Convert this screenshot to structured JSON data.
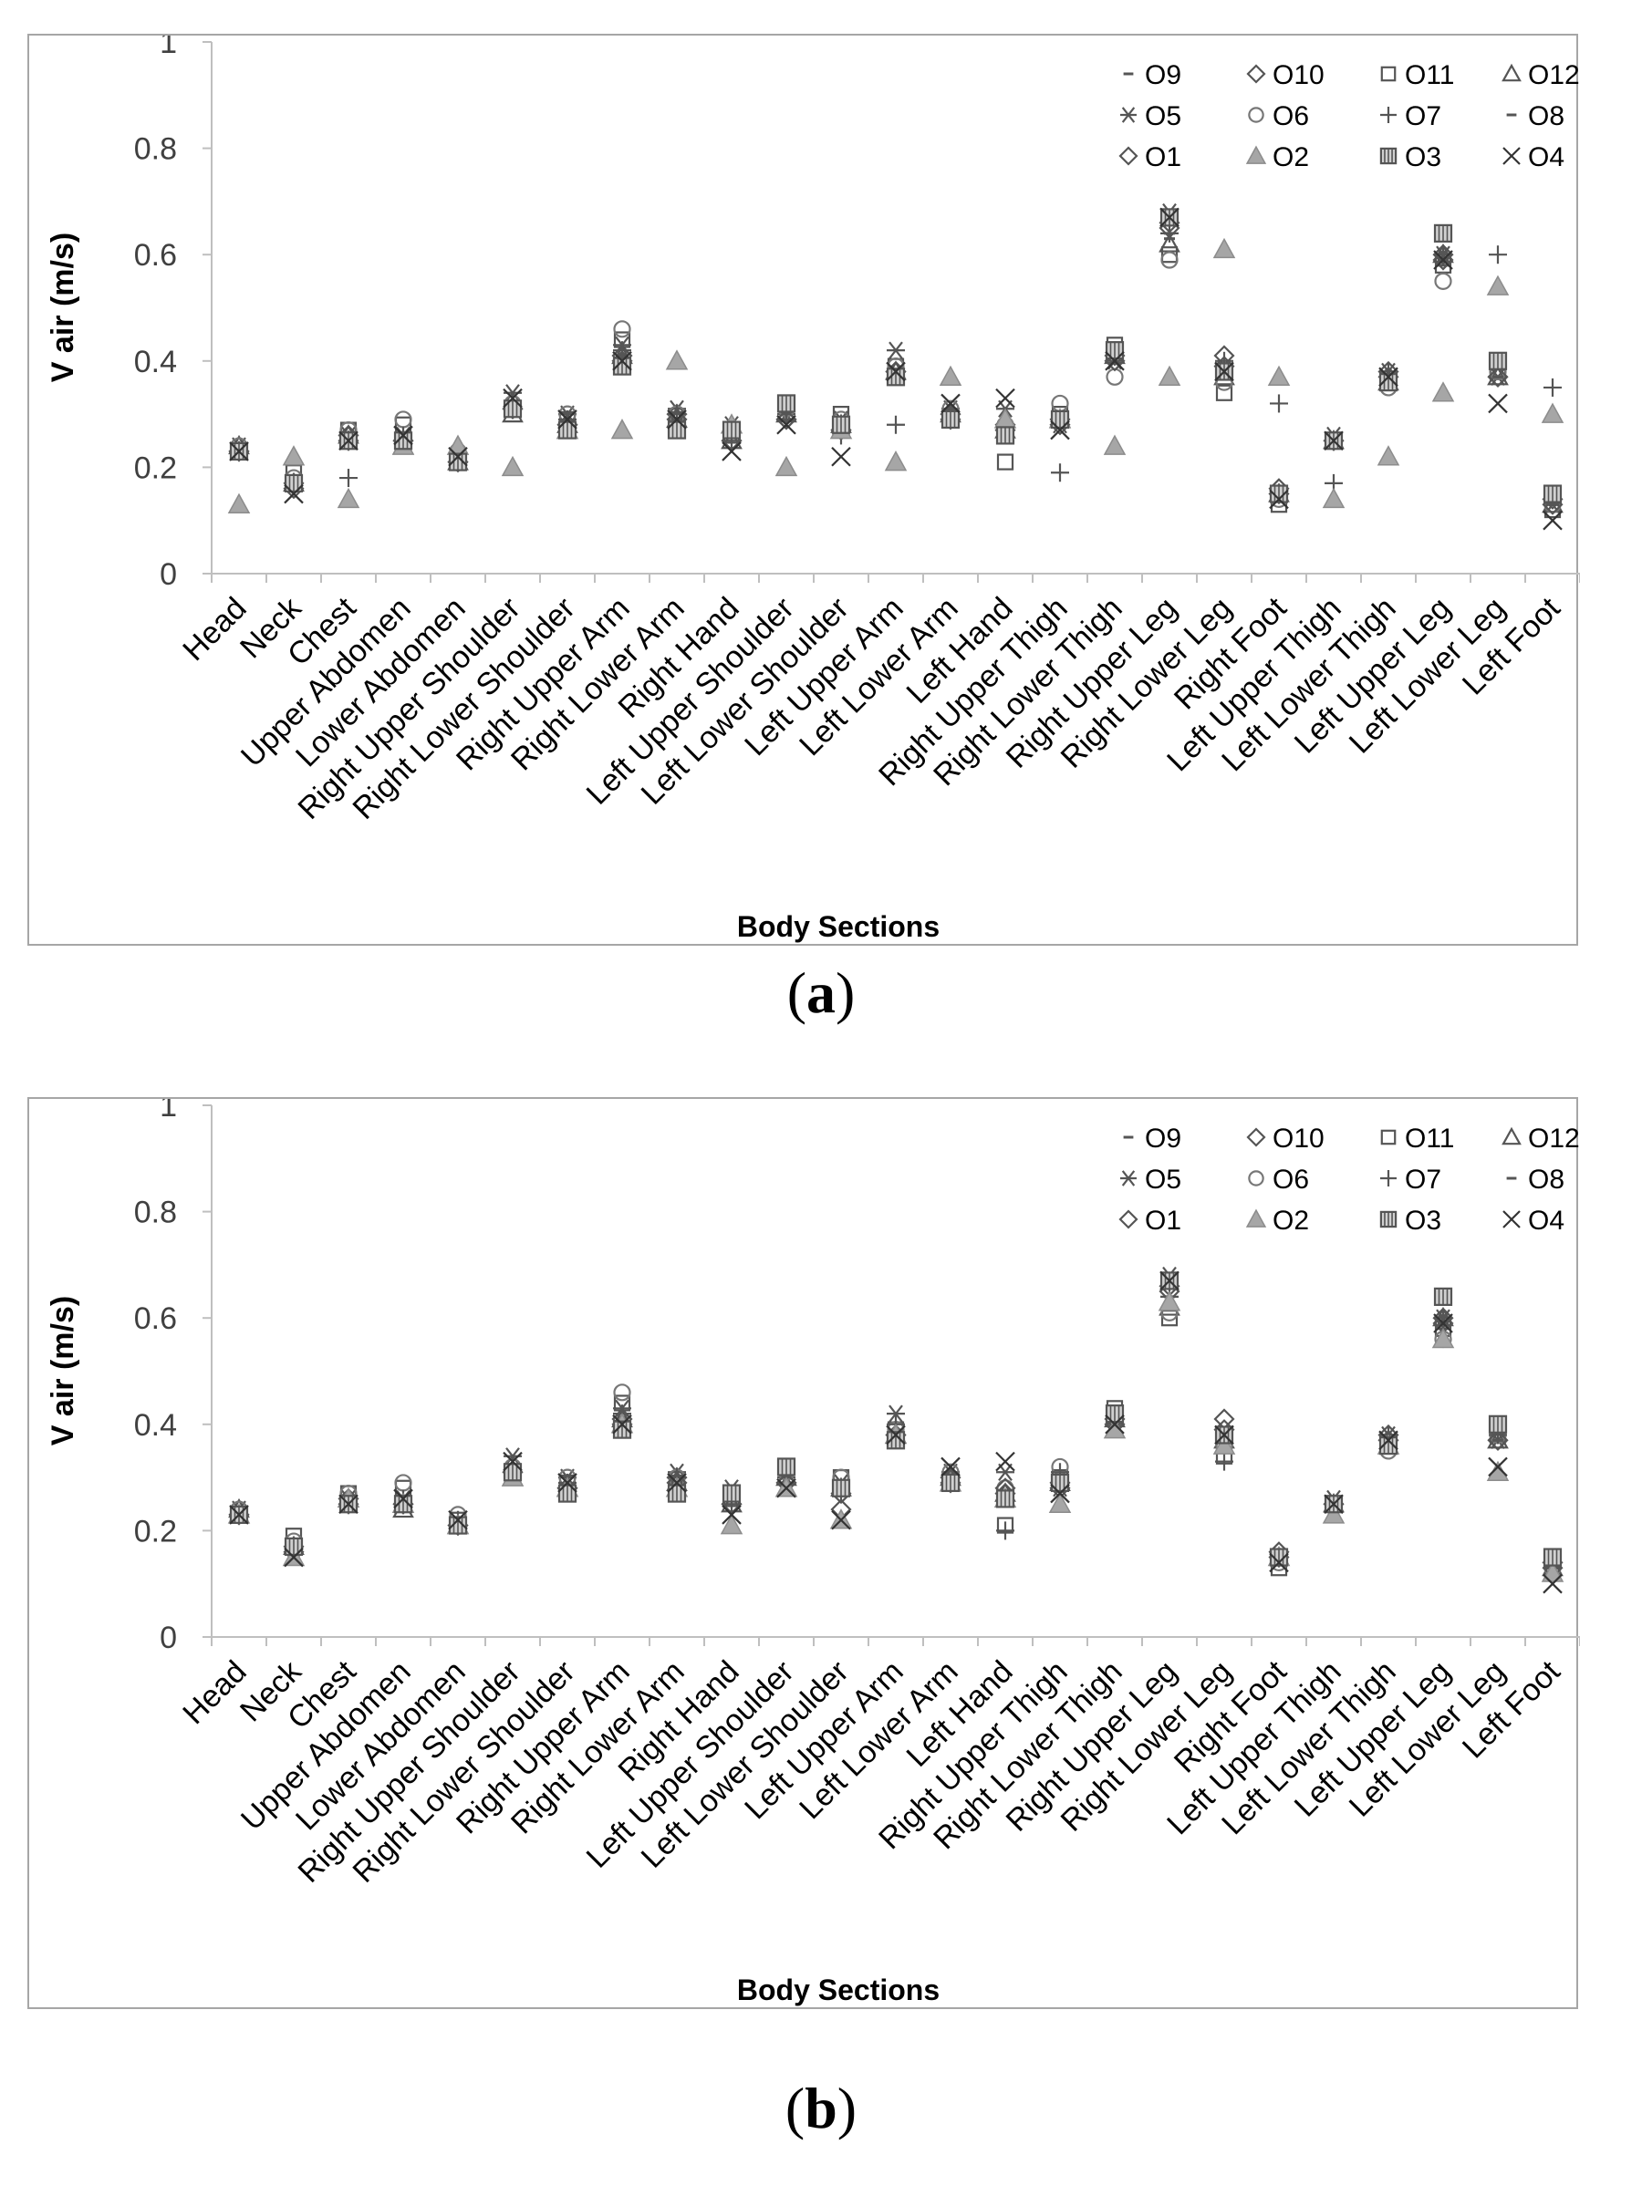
{
  "colors": {
    "marker": "#555555",
    "marker_dark": "#333333",
    "filled": "#a6a6a6",
    "axis": "#bfbfbf",
    "frame": "#a6a6a6"
  },
  "panel_labels": [
    {
      "open": "(",
      "letter": "a",
      "close": ")"
    },
    {
      "open": "(",
      "letter": "b",
      "close": ")"
    }
  ],
  "chart_data": [
    {
      "type": "scatter",
      "title": "",
      "xlabel": "Body Sections",
      "ylabel": "V air (m/s)",
      "ylim": [
        0,
        1
      ],
      "yticks": [
        "0",
        "0.2",
        "0.4",
        "0.6",
        "0.8",
        "1"
      ],
      "legend_position": "top-right",
      "categories": [
        "Head",
        "Neck",
        "Chest",
        "Upper Abdomen",
        "Lower Abdomen",
        "Right Upper Shoulder",
        "Right Lower Shoulder",
        "Right Upper Arm",
        "Right Lower Arm",
        "Right Hand",
        "Left Upper Shoulder",
        "Left Lower Shoulder",
        "Left Upper Arm",
        "Left Lower Arm",
        "Left Hand",
        "Right Upper Thigh",
        "Right Lower Thigh",
        "Right Upper Leg",
        "Right Lower Leg",
        "Right Foot",
        "Left Upper Thigh",
        "Left Lower Thigh",
        "Left Upper Leg",
        "Left Lower Leg",
        "Left Foot"
      ],
      "series": [
        {
          "name": "O9",
          "marker": "dash",
          "values": [
            0.24,
            0.17,
            0.26,
            0.25,
            0.21,
            0.31,
            0.28,
            0.41,
            0.29,
            0.26,
            0.29,
            0.27,
            0.38,
            0.3,
            0.27,
            0.29,
            0.41,
            0.64,
            0.37,
            0.15,
            0.25,
            0.36,
            0.58,
            0.37,
            0.13
          ]
        },
        {
          "name": "O10",
          "marker": "diamond",
          "values": [
            0.23,
            0.16,
            0.26,
            0.25,
            0.21,
            0.31,
            0.28,
            0.41,
            0.3,
            0.25,
            0.29,
            0.27,
            0.38,
            0.3,
            0.27,
            0.29,
            0.41,
            0.65,
            0.41,
            0.16,
            0.25,
            0.38,
            0.6,
            0.37,
            0.14
          ]
        },
        {
          "name": "O11",
          "marker": "square",
          "values": [
            0.23,
            0.19,
            0.27,
            0.28,
            0.22,
            0.31,
            0.29,
            0.44,
            0.29,
            0.26,
            0.32,
            0.3,
            0.39,
            0.29,
            0.21,
            0.3,
            0.43,
            0.6,
            0.34,
            0.13,
            0.25,
            0.36,
            0.58,
            0.38,
            0.12
          ]
        },
        {
          "name": "O12",
          "marker": "triangle",
          "values": [
            0.24,
            0.17,
            0.26,
            0.24,
            0.21,
            0.3,
            0.28,
            0.41,
            0.29,
            0.25,
            0.3,
            0.28,
            0.38,
            0.3,
            0.27,
            0.29,
            0.41,
            0.62,
            0.37,
            0.15,
            0.25,
            0.36,
            0.6,
            0.37,
            0.13
          ]
        },
        {
          "name": "O5",
          "marker": "asterisk",
          "values": [
            0.24,
            0.17,
            0.26,
            0.26,
            0.21,
            0.34,
            0.3,
            0.43,
            0.31,
            0.28,
            0.3,
            0.29,
            0.42,
            0.31,
            0.31,
            0.28,
            0.4,
            0.68,
            0.38,
            0.15,
            0.26,
            0.38,
            0.6,
            0.37,
            0.13
          ]
        },
        {
          "name": "O6",
          "marker": "circle",
          "values": [
            0.24,
            0.18,
            0.27,
            0.29,
            0.23,
            0.32,
            0.3,
            0.46,
            0.3,
            0.27,
            0.31,
            0.29,
            0.39,
            0.31,
            0.28,
            0.32,
            0.37,
            0.59,
            0.36,
            0.14,
            0.25,
            0.35,
            0.55,
            0.38,
            0.13
          ]
        },
        {
          "name": "O7",
          "marker": "plus",
          "values": [
            0.23,
            0.17,
            0.18,
            0.26,
            0.22,
            0.32,
            0.29,
            0.42,
            0.3,
            0.25,
            0.29,
            0.26,
            0.28,
            0.29,
            0.27,
            0.19,
            0.41,
            0.64,
            0.4,
            0.32,
            0.17,
            0.38,
            0.6,
            0.6,
            0.35
          ]
        },
        {
          "name": "O8",
          "marker": "dash",
          "values": [
            0.24,
            0.17,
            0.26,
            0.25,
            0.21,
            0.31,
            0.28,
            0.41,
            0.29,
            0.26,
            0.29,
            0.27,
            0.38,
            0.3,
            0.27,
            0.29,
            0.41,
            0.63,
            0.38,
            0.15,
            0.25,
            0.37,
            0.59,
            0.37,
            0.13
          ]
        },
        {
          "name": "O1",
          "marker": "diamond",
          "values": [
            0.23,
            0.17,
            0.25,
            0.25,
            0.21,
            0.31,
            0.28,
            0.4,
            0.29,
            0.25,
            0.29,
            0.27,
            0.38,
            0.29,
            0.28,
            0.28,
            0.4,
            0.66,
            0.39,
            0.15,
            0.25,
            0.37,
            0.59,
            0.37,
            0.13
          ]
        },
        {
          "name": "O2",
          "marker": "triangle-filled",
          "values": [
            0.13,
            0.22,
            0.14,
            0.24,
            0.24,
            0.2,
            0.27,
            0.27,
            0.4,
            0.28,
            0.2,
            0.27,
            0.21,
            0.37,
            0.29,
            0.29,
            0.24,
            0.37,
            0.61,
            0.37,
            0.14,
            0.22,
            0.34,
            0.54,
            0.3
          ]
        },
        {
          "name": "O3",
          "marker": "square-hatched",
          "values": [
            0.23,
            0.17,
            0.25,
            0.25,
            0.21,
            0.31,
            0.27,
            0.39,
            0.27,
            0.27,
            0.32,
            0.28,
            0.37,
            0.29,
            0.26,
            0.29,
            0.42,
            0.67,
            0.38,
            0.15,
            0.25,
            0.36,
            0.64,
            0.4,
            0.15
          ]
        },
        {
          "name": "O4",
          "marker": "x",
          "values": [
            0.23,
            0.15,
            0.25,
            0.26,
            0.22,
            0.33,
            0.29,
            0.4,
            0.29,
            0.23,
            0.28,
            0.22,
            0.38,
            0.32,
            0.33,
            0.27,
            0.4,
            0.67,
            0.38,
            0.14,
            0.25,
            0.37,
            0.59,
            0.32,
            0.1
          ]
        }
      ]
    },
    {
      "type": "scatter",
      "title": "",
      "xlabel": "Body Sections",
      "ylabel": "V air (m/s)",
      "ylim": [
        0,
        1
      ],
      "yticks": [
        "0",
        "0.2",
        "0.4",
        "0.6",
        "0.8",
        "1"
      ],
      "legend_position": "top-right",
      "categories": [
        "Head",
        "Neck",
        "Chest",
        "Upper Abdomen",
        "Lower Abdomen",
        "Right Upper Shoulder",
        "Right Lower Shoulder",
        "Right Upper Arm",
        "Right Lower Arm",
        "Right Hand",
        "Left Upper Shoulder",
        "Left Lower Shoulder",
        "Left Upper Arm",
        "Left Lower Arm",
        "Left Hand",
        "Right Upper Thigh",
        "Right Lower Thigh",
        "Right Upper Leg",
        "Right Lower Leg",
        "Right Foot",
        "Left Upper Thigh",
        "Left Lower Thigh",
        "Left Upper Leg",
        "Left Lower Leg",
        "Left Foot"
      ],
      "series": [
        {
          "name": "O9",
          "marker": "dash",
          "values": [
            0.24,
            0.17,
            0.26,
            0.25,
            0.21,
            0.31,
            0.28,
            0.41,
            0.29,
            0.26,
            0.29,
            0.27,
            0.38,
            0.3,
            0.27,
            0.29,
            0.41,
            0.64,
            0.37,
            0.15,
            0.25,
            0.36,
            0.58,
            0.37,
            0.13
          ]
        },
        {
          "name": "O10",
          "marker": "diamond",
          "values": [
            0.23,
            0.16,
            0.26,
            0.25,
            0.21,
            0.31,
            0.28,
            0.41,
            0.3,
            0.25,
            0.29,
            0.24,
            0.38,
            0.3,
            0.27,
            0.29,
            0.41,
            0.65,
            0.41,
            0.16,
            0.25,
            0.38,
            0.6,
            0.37,
            0.14
          ]
        },
        {
          "name": "O11",
          "marker": "square",
          "values": [
            0.23,
            0.19,
            0.27,
            0.28,
            0.22,
            0.31,
            0.29,
            0.44,
            0.29,
            0.26,
            0.32,
            0.3,
            0.39,
            0.29,
            0.21,
            0.3,
            0.43,
            0.6,
            0.34,
            0.13,
            0.25,
            0.36,
            0.58,
            0.38,
            0.12
          ]
        },
        {
          "name": "O12",
          "marker": "triangle",
          "values": [
            0.24,
            0.17,
            0.26,
            0.24,
            0.21,
            0.3,
            0.28,
            0.41,
            0.29,
            0.25,
            0.3,
            0.28,
            0.38,
            0.3,
            0.27,
            0.29,
            0.41,
            0.62,
            0.37,
            0.15,
            0.25,
            0.36,
            0.6,
            0.37,
            0.13
          ]
        },
        {
          "name": "O5",
          "marker": "asterisk",
          "values": [
            0.24,
            0.17,
            0.26,
            0.26,
            0.21,
            0.34,
            0.3,
            0.43,
            0.31,
            0.28,
            0.3,
            0.29,
            0.42,
            0.31,
            0.31,
            0.28,
            0.4,
            0.68,
            0.38,
            0.15,
            0.26,
            0.38,
            0.6,
            0.37,
            0.13
          ]
        },
        {
          "name": "O6",
          "marker": "circle",
          "values": [
            0.24,
            0.18,
            0.27,
            0.29,
            0.23,
            0.32,
            0.3,
            0.46,
            0.3,
            0.27,
            0.31,
            0.3,
            0.39,
            0.31,
            0.28,
            0.32,
            0.42,
            0.61,
            0.36,
            0.14,
            0.25,
            0.35,
            0.56,
            0.38,
            0.13
          ]
        },
        {
          "name": "O7",
          "marker": "plus",
          "values": [
            0.23,
            0.17,
            0.26,
            0.26,
            0.22,
            0.32,
            0.29,
            0.42,
            0.3,
            0.25,
            0.29,
            0.27,
            0.4,
            0.29,
            0.2,
            0.31,
            0.41,
            0.64,
            0.33,
            0.15,
            0.25,
            0.38,
            0.6,
            0.38,
            0.13
          ]
        },
        {
          "name": "O8",
          "marker": "dash",
          "values": [
            0.24,
            0.17,
            0.26,
            0.25,
            0.21,
            0.31,
            0.28,
            0.41,
            0.29,
            0.26,
            0.29,
            0.27,
            0.38,
            0.3,
            0.27,
            0.29,
            0.41,
            0.63,
            0.38,
            0.15,
            0.25,
            0.37,
            0.59,
            0.37,
            0.13
          ]
        },
        {
          "name": "O1",
          "marker": "diamond",
          "values": [
            0.23,
            0.17,
            0.25,
            0.25,
            0.21,
            0.31,
            0.28,
            0.4,
            0.29,
            0.25,
            0.29,
            0.27,
            0.38,
            0.29,
            0.28,
            0.28,
            0.4,
            0.66,
            0.39,
            0.15,
            0.25,
            0.37,
            0.59,
            0.37,
            0.13
          ]
        },
        {
          "name": "O2",
          "marker": "triangle-filled",
          "values": [
            0.23,
            0.15,
            0.26,
            0.25,
            0.21,
            0.3,
            0.28,
            0.4,
            0.28,
            0.21,
            0.28,
            0.22,
            0.38,
            0.29,
            0.26,
            0.25,
            0.39,
            0.63,
            0.36,
            0.15,
            0.23,
            0.36,
            0.56,
            0.31,
            0.12
          ]
        },
        {
          "name": "O3",
          "marker": "square-hatched",
          "values": [
            0.23,
            0.17,
            0.25,
            0.25,
            0.21,
            0.31,
            0.27,
            0.39,
            0.27,
            0.27,
            0.32,
            0.28,
            0.37,
            0.29,
            0.26,
            0.29,
            0.42,
            0.67,
            0.38,
            0.15,
            0.25,
            0.36,
            0.64,
            0.4,
            0.15
          ]
        },
        {
          "name": "O4",
          "marker": "x",
          "values": [
            0.23,
            0.15,
            0.25,
            0.26,
            0.22,
            0.33,
            0.29,
            0.4,
            0.29,
            0.23,
            0.28,
            0.22,
            0.38,
            0.32,
            0.33,
            0.27,
            0.4,
            0.67,
            0.38,
            0.14,
            0.25,
            0.37,
            0.59,
            0.32,
            0.1
          ]
        }
      ]
    }
  ]
}
